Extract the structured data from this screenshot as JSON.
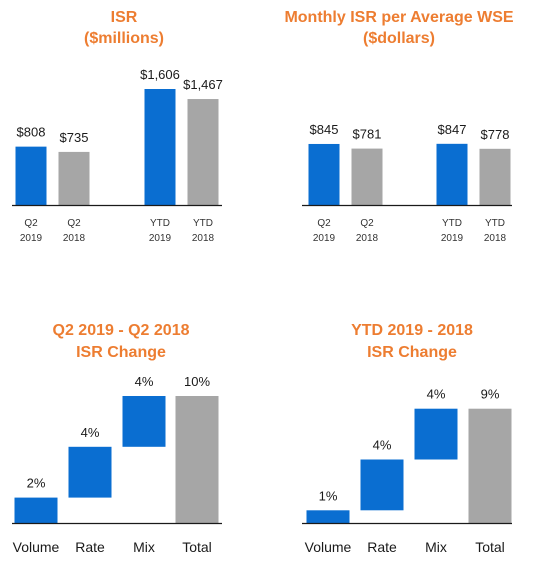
{
  "colors": {
    "blue": "#0A6ED1",
    "gray": "#A6A6A6",
    "title": "#ED7D31"
  },
  "chart_data": [
    {
      "type": "bar",
      "title": "ISR",
      "subtitle": "($millions)",
      "categories": [
        [
          "Q2",
          "2019"
        ],
        [
          "Q2",
          "2018"
        ],
        [
          "YTD",
          "2019"
        ],
        [
          "YTD",
          "2018"
        ]
      ],
      "values": [
        808,
        735,
        1606,
        1467
      ],
      "labels": [
        "$808",
        "$735",
        "$1,606",
        "$1,467"
      ],
      "colors": [
        "blue",
        "gray",
        "blue",
        "gray"
      ],
      "ylim": [
        0,
        1606
      ]
    },
    {
      "type": "bar",
      "title": "Monthly ISR per Average WSE",
      "subtitle": "($dollars)",
      "categories": [
        [
          "Q2",
          "2019"
        ],
        [
          "Q2",
          "2018"
        ],
        [
          "YTD",
          "2019"
        ],
        [
          "YTD",
          "2018"
        ]
      ],
      "values": [
        845,
        781,
        847,
        778
      ],
      "labels": [
        "$845",
        "$781",
        "$847",
        "$778"
      ],
      "colors": [
        "blue",
        "gray",
        "blue",
        "gray"
      ],
      "ylim": [
        0,
        1606
      ]
    },
    {
      "type": "bar",
      "subtype": "waterfall",
      "title": "Q2 2019 - Q2 2018",
      "subtitle": "ISR Change",
      "categories": [
        "Volume",
        "Rate",
        "Mix",
        "Total"
      ],
      "values": [
        2,
        4,
        4,
        10
      ],
      "labels": [
        "2%",
        "4%",
        "4%",
        "10%"
      ],
      "colors": [
        "blue",
        "blue",
        "blue",
        "gray"
      ],
      "ylim": [
        0,
        10
      ]
    },
    {
      "type": "bar",
      "subtype": "waterfall",
      "title": "YTD 2019 -  2018",
      "subtitle": "ISR Change",
      "categories": [
        "Volume",
        "Rate",
        "Mix",
        "Total"
      ],
      "values": [
        1,
        4,
        4,
        9
      ],
      "labels": [
        "1%",
        "4%",
        "4%",
        "9%"
      ],
      "colors": [
        "blue",
        "blue",
        "blue",
        "gray"
      ],
      "ylim": [
        0,
        10
      ]
    }
  ]
}
